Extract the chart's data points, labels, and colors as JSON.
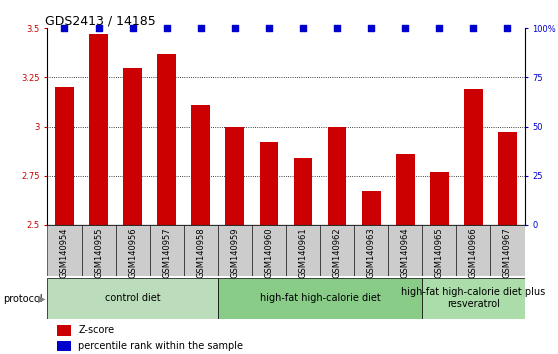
{
  "title": "GDS2413 / 14185",
  "samples": [
    "GSM140954",
    "GSM140955",
    "GSM140956",
    "GSM140957",
    "GSM140958",
    "GSM140959",
    "GSM140960",
    "GSM140961",
    "GSM140962",
    "GSM140963",
    "GSM140964",
    "GSM140965",
    "GSM140966",
    "GSM140967"
  ],
  "zscore": [
    3.2,
    3.47,
    3.3,
    3.37,
    3.11,
    3.0,
    2.92,
    2.84,
    3.0,
    2.67,
    2.86,
    2.77,
    3.19,
    2.97
  ],
  "percentile": [
    100,
    100,
    100,
    100,
    100,
    100,
    100,
    100,
    100,
    100,
    100,
    100,
    100,
    100
  ],
  "bar_color": "#cc0000",
  "dot_color": "#0000cc",
  "ylim": [
    2.5,
    3.5
  ],
  "yticks_left": [
    2.5,
    2.75,
    3.0,
    3.25,
    3.5
  ],
  "yticks_right": [
    0,
    25,
    50,
    75,
    100
  ],
  "grid_ticks": [
    2.75,
    3.0,
    3.25
  ],
  "groups": [
    {
      "label": "control diet",
      "start": 0,
      "end": 5,
      "color": "#bbddbb"
    },
    {
      "label": "high-fat high-calorie diet",
      "start": 5,
      "end": 11,
      "color": "#88cc88"
    },
    {
      "label": "high-fat high-calorie diet plus\nresveratrol",
      "start": 11,
      "end": 14,
      "color": "#aaddaa"
    }
  ],
  "protocol_label": "protocol",
  "legend_zscore": "Z-score",
  "legend_percentile": "percentile rank within the sample",
  "bar_width": 0.55,
  "tick_bg_color": "#cccccc",
  "plot_bg_color": "#ffffff",
  "title_fontsize": 9,
  "tick_fontsize": 6,
  "label_fontsize": 7,
  "group_fontsize": 7
}
